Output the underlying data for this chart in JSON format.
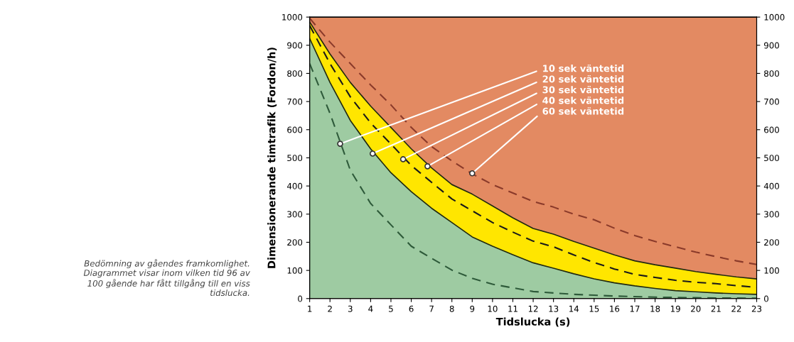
{
  "chart_data": {
    "type": "line",
    "xlabel": "Tidslucka (s)",
    "ylabel": "Dimensionerande timtrafik (Fordon/h)",
    "x": [
      1,
      2,
      3,
      4,
      5,
      6,
      7,
      8,
      9,
      10,
      11,
      12,
      13,
      14,
      15,
      16,
      17,
      18,
      19,
      20,
      21,
      22,
      23
    ],
    "series": [
      {
        "type": "area",
        "color": "#ffe600",
        "line_style": "solid",
        "values": [
          983,
          869,
          768,
          684,
          608,
          532,
          464,
          405,
          371,
          329,
          287,
          249,
          229,
          203,
          179,
          155,
          134,
          120,
          108,
          96,
          86,
          77,
          70
        ]
      },
      {
        "type": "area",
        "color": "#9ecba2",
        "line_style": "solid",
        "values": [
          924,
          768,
          633,
          532,
          447,
          380,
          321,
          270,
          219,
          186,
          156,
          127,
          108,
          88,
          70,
          56,
          45,
          36,
          28,
          24,
          20,
          17,
          15
        ]
      },
      {
        "type": "line",
        "color": "#2e5a3a",
        "line_style": "dashed",
        "values": [
          835,
          658,
          456,
          338,
          262,
          186,
          143,
          101,
          72,
          51,
          38,
          25,
          20,
          15,
          12,
          9,
          7,
          5,
          4,
          3,
          2,
          2,
          1
        ]
      },
      {
        "type": "line",
        "color": "#1a1a1a",
        "line_style": "dashed",
        "values": [
          970,
          835,
          717,
          624,
          549,
          473,
          413,
          354,
          312,
          270,
          236,
          204,
          184,
          155,
          128,
          105,
          86,
          75,
          65,
          58,
          53,
          46,
          40
        ]
      },
      {
        "type": "line",
        "color": "#8a3a2a",
        "line_style": "dashed",
        "values": [
          996,
          911,
          835,
          759,
          688,
          608,
          540,
          489,
          443,
          405,
          375,
          345,
          325,
          300,
          280,
          250,
          224,
          203,
          184,
          165,
          149,
          134,
          121
        ]
      }
    ],
    "bands": [
      {
        "axis": "y",
        "from": 0,
        "to": 1000,
        "color": "#e38a62"
      }
    ],
    "annotations": [
      {
        "text": "10 sek väntetid",
        "x": 2.5,
        "y": 550
      },
      {
        "text": "20 sek väntetid",
        "x": 4.1,
        "y": 515
      },
      {
        "text": "30 sek väntetid",
        "x": 5.6,
        "y": 495
      },
      {
        "text": "40 sek väntetid",
        "x": 6.8,
        "y": 470
      },
      {
        "text": "60 sek väntetid",
        "x": 9,
        "y": 445
      },
      "Bedömning av gåendes framkomlighet.\nDiagrammet visar inom vilken tid 96 av\n100 gående har fått tillgång till en viss\ntidslucka."
    ],
    "xlim": [
      1,
      23
    ],
    "xticks": [
      1,
      2,
      3,
      4,
      5,
      6,
      7,
      8,
      9,
      10,
      11,
      12,
      13,
      14,
      15,
      16,
      17,
      18,
      19,
      20,
      21,
      22,
      23
    ],
    "ylim": [
      0,
      1000
    ],
    "yticks": [
      0,
      100,
      200,
      300,
      400,
      500,
      600,
      700,
      800,
      900,
      1000
    ],
    "y2lim": [
      0,
      1000
    ],
    "y2ticks": [
      0,
      100,
      200,
      300,
      400,
      500,
      600,
      700,
      800,
      900,
      1000
    ],
    "grid": false
  }
}
